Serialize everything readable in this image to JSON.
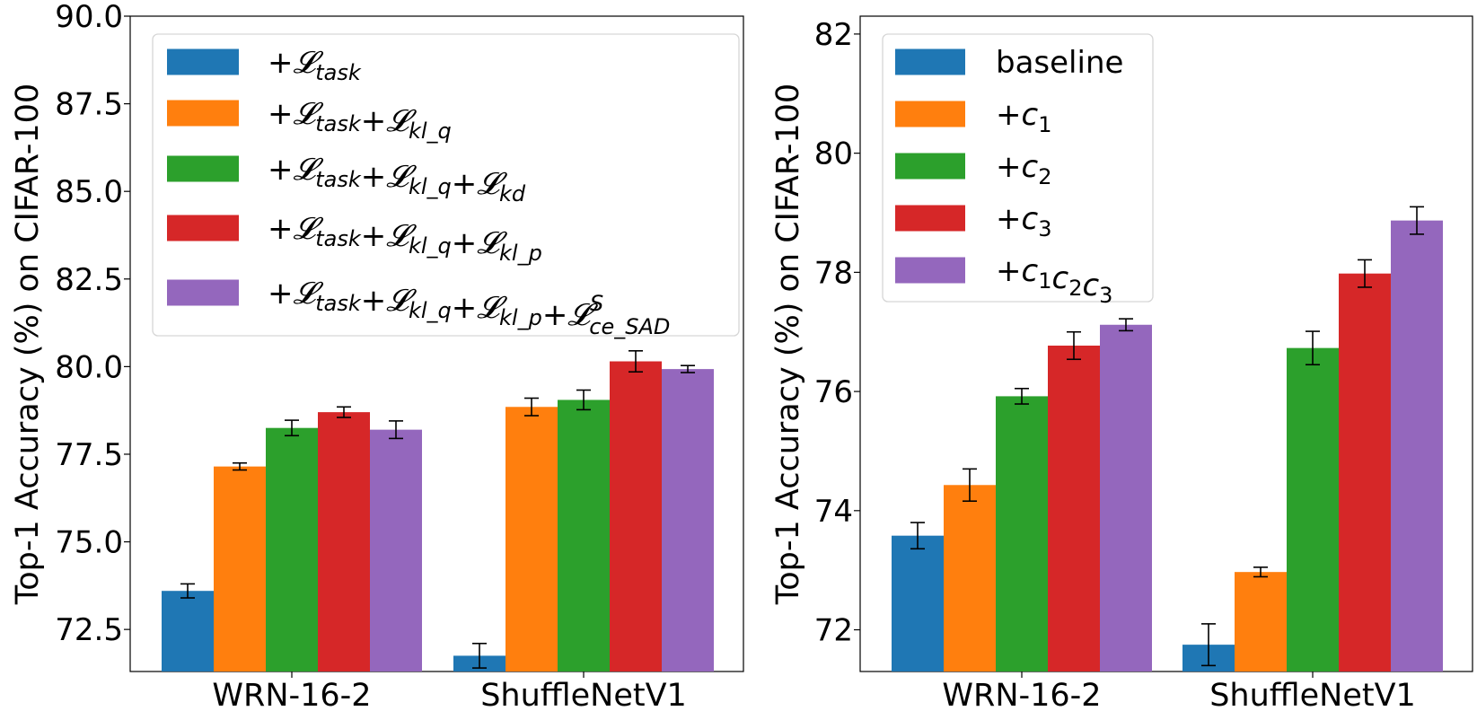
{
  "chart_data": [
    {
      "type": "bar",
      "title": "",
      "xlabel": "",
      "ylabel": "Top-1 Accuracy (%) on CIFAR-100",
      "ylim": [
        71.3,
        90.0
      ],
      "yticks": [
        72.5,
        75.0,
        77.5,
        80.0,
        82.5,
        85.0,
        87.5,
        90.0
      ],
      "ytick_labels": [
        "72.5",
        "75.0",
        "77.5",
        "80.0",
        "82.5",
        "85.0",
        "87.5",
        "90.0"
      ],
      "categories": [
        "WRN-16-2",
        "ShuffleNetV1"
      ],
      "legend_position": "top",
      "series": [
        {
          "name": "+𝓛task",
          "legend": [
            {
              "t": "+𝓛"
            },
            {
              "t": "task",
              "sub": true
            }
          ],
          "color": "#1f77b4",
          "values": [
            73.6,
            71.75
          ],
          "errors": [
            0.2,
            0.35
          ]
        },
        {
          "name": "+𝓛task+𝓛kl_q",
          "legend": [
            {
              "t": "+𝓛"
            },
            {
              "t": "task",
              "sub": true
            },
            {
              "t": "+𝓛"
            },
            {
              "t": "kl_q",
              "sub": true
            }
          ],
          "color": "#ff7f0e",
          "values": [
            77.15,
            78.85
          ],
          "errors": [
            0.1,
            0.25
          ]
        },
        {
          "name": "+𝓛task+𝓛kl_q+𝓛kd",
          "legend": [
            {
              "t": "+𝓛"
            },
            {
              "t": "task",
              "sub": true
            },
            {
              "t": "+𝓛"
            },
            {
              "t": "kl_q",
              "sub": true
            },
            {
              "t": "+𝓛"
            },
            {
              "t": "kd",
              "sub": true
            }
          ],
          "color": "#2ca02c",
          "values": [
            78.25,
            79.05
          ],
          "errors": [
            0.22,
            0.28
          ]
        },
        {
          "name": "+𝓛task+𝓛kl_q+𝓛kl_p",
          "legend": [
            {
              "t": "+𝓛"
            },
            {
              "t": "task",
              "sub": true
            },
            {
              "t": "+𝓛"
            },
            {
              "t": "kl_q",
              "sub": true
            },
            {
              "t": "+𝓛"
            },
            {
              "t": "kl_p",
              "sub": true
            }
          ],
          "color": "#d62728",
          "values": [
            78.7,
            80.15
          ],
          "errors": [
            0.15,
            0.3
          ]
        },
        {
          "name": "+𝓛task+𝓛kl_q+𝓛kl_p+𝓛S ce_SAD",
          "legend": [
            {
              "t": "+𝓛"
            },
            {
              "t": "task",
              "sub": true
            },
            {
              "t": "+𝓛"
            },
            {
              "t": "kl_q",
              "sub": true
            },
            {
              "t": "+𝓛"
            },
            {
              "t": "kl_p",
              "sub": true
            },
            {
              "t": "+𝓛"
            },
            {
              "t": "ce_SAD",
              "sub": true,
              "sup": "S"
            }
          ],
          "color": "#9467bd",
          "values": [
            78.2,
            79.93
          ],
          "errors": [
            0.25,
            0.1
          ]
        }
      ]
    },
    {
      "type": "bar",
      "title": "",
      "xlabel": "",
      "ylabel": "Top-1 Accuracy (%) on CIFAR-100",
      "ylim": [
        71.3,
        82.3
      ],
      "yticks": [
        72,
        74,
        76,
        78,
        80,
        82
      ],
      "ytick_labels": [
        "72",
        "74",
        "76",
        "78",
        "80",
        "82"
      ],
      "categories": [
        "WRN-16-2",
        "ShuffleNetV1"
      ],
      "legend_position": "top-left",
      "series": [
        {
          "name": "baseline",
          "legend": [
            {
              "t": "baseline",
              "plain": true
            }
          ],
          "color": "#1f77b4",
          "values": [
            73.58,
            71.75
          ],
          "errors": [
            0.22,
            0.35
          ]
        },
        {
          "name": "+c1",
          "legend": [
            {
              "t": "+"
            },
            {
              "t": "c"
            },
            {
              "t": "1",
              "sub": true,
              "plain": true
            }
          ],
          "color": "#ff7f0e",
          "values": [
            74.43,
            72.97
          ],
          "errors": [
            0.27,
            0.08
          ]
        },
        {
          "name": "+c2",
          "legend": [
            {
              "t": "+"
            },
            {
              "t": "c"
            },
            {
              "t": "2",
              "sub": true,
              "plain": true
            }
          ],
          "color": "#2ca02c",
          "values": [
            75.92,
            76.73
          ],
          "errors": [
            0.13,
            0.28
          ]
        },
        {
          "name": "+c3",
          "legend": [
            {
              "t": "+"
            },
            {
              "t": "c"
            },
            {
              "t": "3",
              "sub": true,
              "plain": true
            }
          ],
          "color": "#d62728",
          "values": [
            76.77,
            77.98
          ],
          "errors": [
            0.23,
            0.23
          ]
        },
        {
          "name": "+c1c2c3",
          "legend": [
            {
              "t": "+"
            },
            {
              "t": "c"
            },
            {
              "t": "1",
              "sub": true,
              "plain": true
            },
            {
              "t": "c"
            },
            {
              "t": "2",
              "sub": true,
              "plain": true
            },
            {
              "t": "c"
            },
            {
              "t": "3",
              "sub": true,
              "plain": true
            }
          ],
          "color": "#9467bd",
          "values": [
            77.12,
            78.87
          ],
          "errors": [
            0.1,
            0.23
          ]
        }
      ]
    }
  ]
}
